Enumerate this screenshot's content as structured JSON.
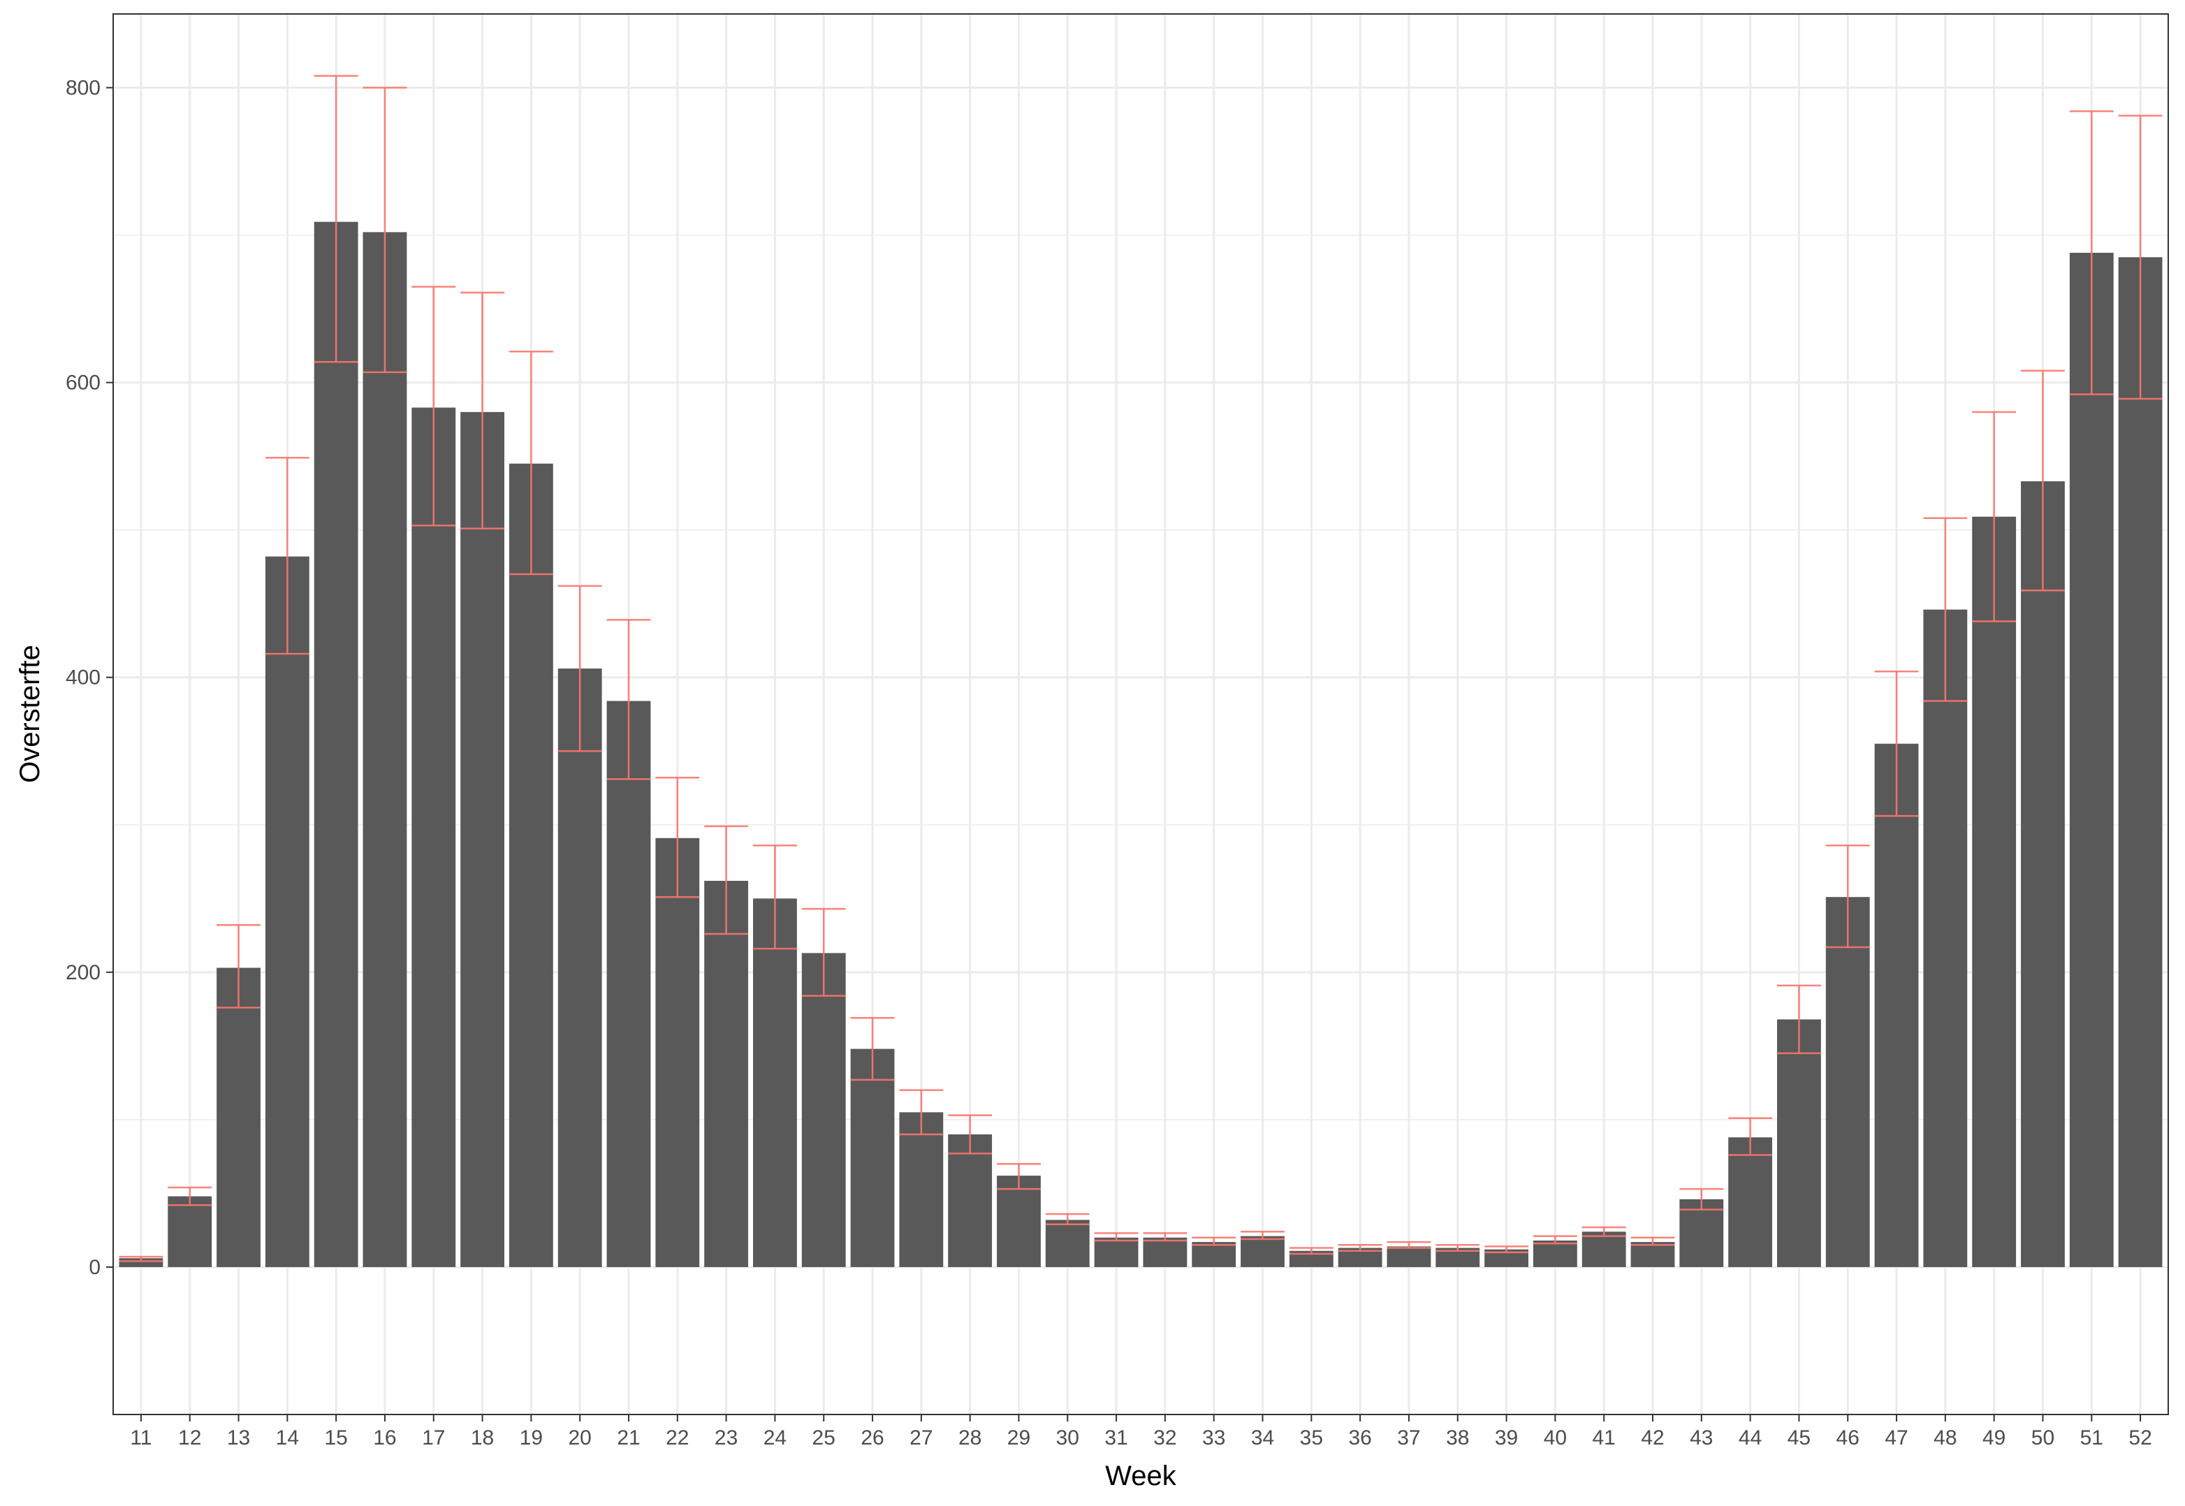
{
  "chart_data": {
    "type": "bar",
    "title": "",
    "xlabel": "Week",
    "ylabel": "Oversterfte",
    "ylim": [
      -100,
      850
    ],
    "yticks": [
      0,
      200,
      400,
      600,
      800
    ],
    "grid": true,
    "categories": [
      "11",
      "12",
      "13",
      "14",
      "15",
      "16",
      "17",
      "18",
      "19",
      "20",
      "21",
      "22",
      "23",
      "24",
      "25",
      "26",
      "27",
      "28",
      "29",
      "30",
      "31",
      "32",
      "33",
      "34",
      "35",
      "36",
      "37",
      "38",
      "39",
      "40",
      "41",
      "42",
      "43",
      "44",
      "45",
      "46",
      "47",
      "48",
      "49",
      "50",
      "51",
      "52"
    ],
    "values": [
      6,
      48,
      203,
      482,
      709,
      702,
      583,
      580,
      545,
      406,
      384,
      291,
      262,
      250,
      213,
      148,
      105,
      90,
      62,
      32,
      20,
      20,
      17,
      21,
      11,
      13,
      14,
      13,
      12,
      18,
      24,
      17,
      46,
      88,
      168,
      251,
      355,
      446,
      509,
      533,
      688,
      685
    ],
    "error_low": [
      4,
      42,
      176,
      416,
      614,
      607,
      503,
      501,
      470,
      350,
      331,
      251,
      226,
      216,
      184,
      127,
      90,
      77,
      53,
      29,
      18,
      18,
      15,
      19,
      9,
      11,
      13,
      11,
      10,
      16,
      21,
      15,
      39,
      76,
      145,
      217,
      306,
      384,
      438,
      459,
      592,
      589
    ],
    "error_high": [
      7,
      54,
      232,
      549,
      808,
      800,
      665,
      661,
      621,
      462,
      439,
      332,
      299,
      286,
      243,
      169,
      120,
      103,
      70,
      36,
      23,
      23,
      20,
      24,
      13,
      15,
      17,
      15,
      14,
      21,
      27,
      20,
      53,
      101,
      191,
      286,
      404,
      508,
      580,
      608,
      784,
      781
    ],
    "bar_color": "#595959",
    "error_color": "#f8766d"
  }
}
